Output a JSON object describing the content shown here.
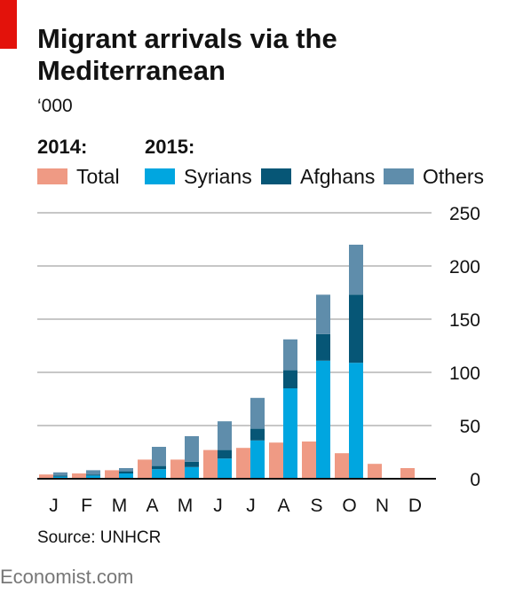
{
  "header": {
    "title": "Migrant arrivals via the Mediterranean",
    "units": "‘000"
  },
  "legend": {
    "group_2014": "2014:",
    "group_2015": "2015:",
    "total": "Total",
    "syrians": "Syrians",
    "afghans": "Afghans",
    "others": "Others"
  },
  "colors": {
    "accent_red": "#e3120b",
    "total": "#ef9a84",
    "syrians": "#00a6e0",
    "afghans": "#065676",
    "others": "#5f8dab",
    "grid": "#c7c7c7"
  },
  "chart_data": {
    "type": "bar",
    "title": "Migrant arrivals via the Mediterranean",
    "unit": "‘000",
    "categories": [
      "J",
      "F",
      "M",
      "A",
      "M",
      "J",
      "J",
      "A",
      "S",
      "O",
      "N",
      "D"
    ],
    "ylim": [
      0,
      250
    ],
    "yticks": [
      0,
      50,
      100,
      150,
      200,
      250
    ],
    "y_axis_side": "right",
    "grid": true,
    "legend_position": "top",
    "series_2014": {
      "name": "Total",
      "values": [
        4,
        5,
        8,
        18,
        18,
        27,
        29,
        34,
        35,
        24,
        14,
        10
      ]
    },
    "series_2015_stacked": [
      {
        "name": "Syrians",
        "values": [
          2,
          3,
          5,
          9,
          11,
          19,
          36,
          85,
          111,
          109,
          0,
          0
        ]
      },
      {
        "name": "Afghans",
        "values": [
          1,
          1,
          2,
          3,
          5,
          8,
          11,
          17,
          25,
          64,
          0,
          0
        ]
      },
      {
        "name": "Others",
        "values": [
          3,
          4,
          3,
          18,
          24,
          27,
          29,
          29,
          37,
          47,
          0,
          0
        ]
      }
    ]
  },
  "footer": {
    "source": "Source: UNHCR",
    "brand": "Economist.com"
  }
}
